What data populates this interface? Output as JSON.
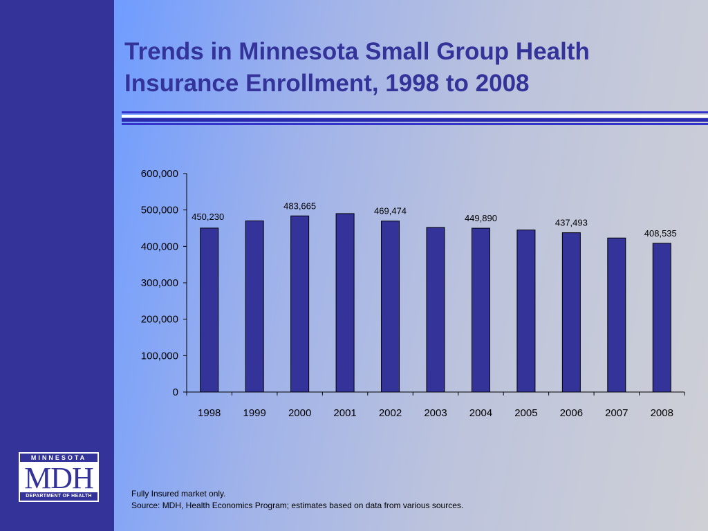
{
  "slide": {
    "title_line1": "Trends in Minnesota Small Group Health",
    "title_line2": "Insurance Enrollment, 1998 to 2008",
    "footnote_line1": "Fully Insured market only.",
    "footnote_line2": "Source: MDH, Health Economics Program; estimates based on data from various sources."
  },
  "logo": {
    "top": "MINNESOTA",
    "middle": "MDH",
    "bottom": "DEPARTMENT OF HEALTH"
  },
  "colors": {
    "sidebar": "#333399",
    "bar_fill": "#333399",
    "title": "#333399"
  },
  "chart_data": {
    "type": "bar",
    "categories": [
      "1998",
      "1999",
      "2000",
      "2001",
      "2002",
      "2003",
      "2004",
      "2005",
      "2006",
      "2007",
      "2008"
    ],
    "values": [
      450230,
      470000,
      483665,
      490000,
      469474,
      452000,
      449890,
      445000,
      437493,
      423000,
      408535
    ],
    "data_labels": [
      "450,230",
      "",
      "483,665",
      "",
      "469,474",
      "",
      "449,890",
      "",
      "437,493",
      "",
      "408,535"
    ],
    "yticks": [
      "0",
      "100,000",
      "200,000",
      "300,000",
      "400,000",
      "500,000",
      "600,000"
    ],
    "ylim": [
      0,
      600000
    ],
    "grid": false,
    "legend": "none"
  }
}
